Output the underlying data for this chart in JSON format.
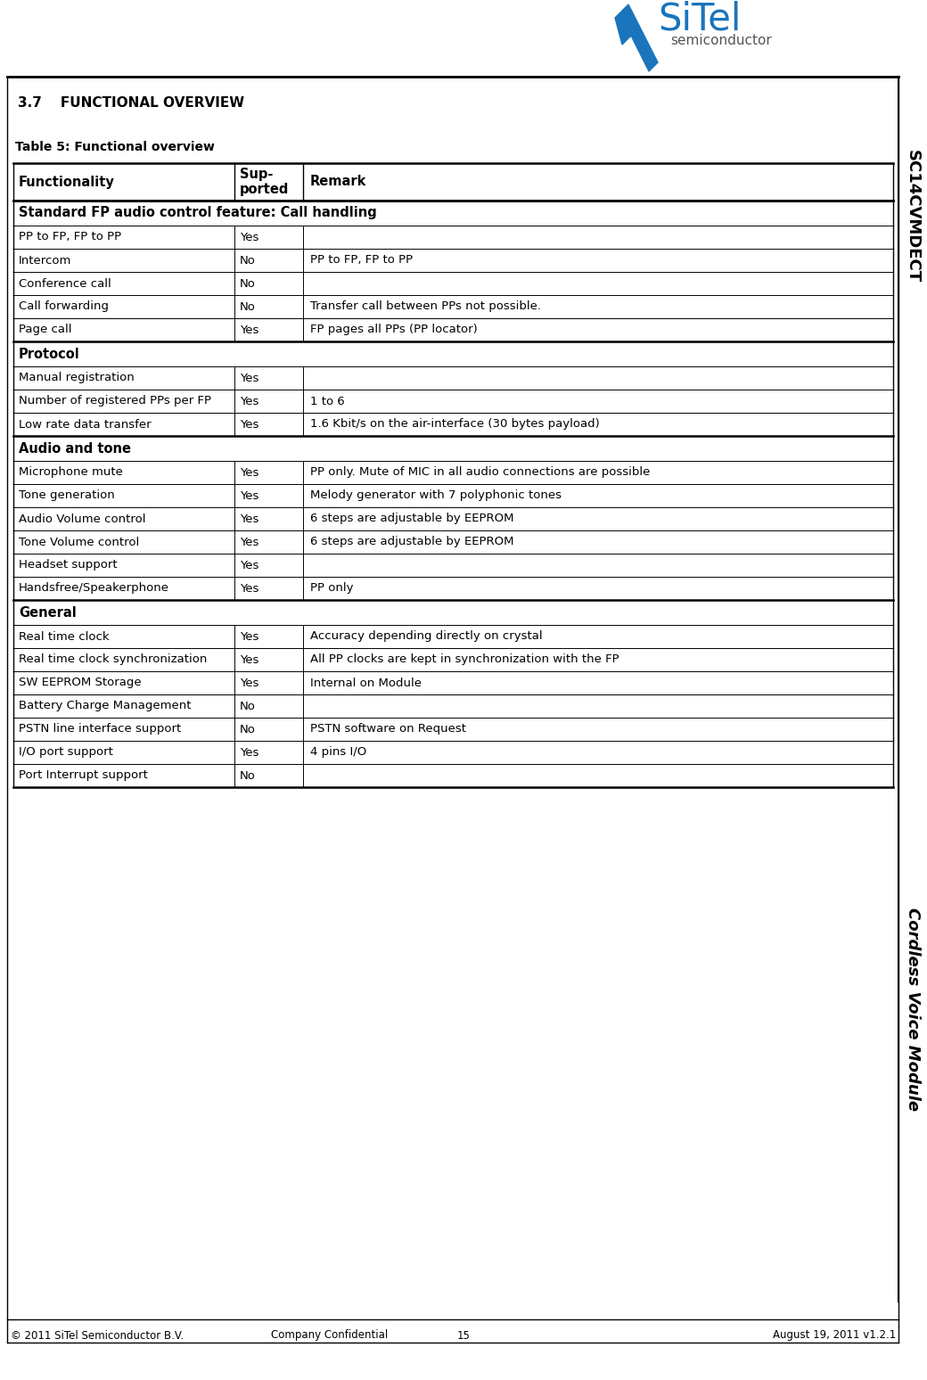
{
  "title_section": "3.7    FUNCTIONAL OVERVIEW",
  "table_title": "Table 5: Functional overview",
  "rows": [
    {
      "type": "header",
      "func": "Functionality",
      "sup": "Sup-\nported",
      "remark": "Remark"
    },
    {
      "type": "section",
      "text": "Standard FP audio control feature: Call handling"
    },
    {
      "type": "data",
      "func": "PP to FP, FP to PP",
      "sup": "Yes",
      "remark": ""
    },
    {
      "type": "data",
      "func": "Intercom",
      "sup": "No",
      "remark": "PP to FP, FP to PP"
    },
    {
      "type": "data",
      "func": "Conference call",
      "sup": "No",
      "remark": ""
    },
    {
      "type": "data",
      "func": "Call forwarding",
      "sup": "No",
      "remark": "Transfer call between PPs not possible."
    },
    {
      "type": "data",
      "func": "Page call",
      "sup": "Yes",
      "remark": "FP pages all PPs (PP locator)"
    },
    {
      "type": "section",
      "text": "Protocol"
    },
    {
      "type": "data",
      "func": "Manual registration",
      "sup": "Yes",
      "remark": ""
    },
    {
      "type": "data",
      "func": "Number of registered PPs per FP",
      "sup": "Yes",
      "remark": "1 to 6"
    },
    {
      "type": "data",
      "func": "Low rate data transfer",
      "sup": "Yes",
      "remark": "1.6 Kbit/s on the air-interface (30 bytes payload)"
    },
    {
      "type": "section",
      "text": "Audio and tone"
    },
    {
      "type": "data",
      "func": "Microphone mute",
      "sup": "Yes",
      "remark": "PP only. Mute of MIC in all audio connections are possible"
    },
    {
      "type": "data",
      "func": "Tone generation",
      "sup": "Yes",
      "remark": "Melody generator with 7 polyphonic tones"
    },
    {
      "type": "data",
      "func": "Audio Volume control",
      "sup": "Yes",
      "remark": "6 steps are adjustable by EEPROM"
    },
    {
      "type": "data",
      "func": "Tone Volume control",
      "sup": "Yes",
      "remark": "6 steps are adjustable by EEPROM"
    },
    {
      "type": "data",
      "func": "Headset support",
      "sup": "Yes",
      "remark": ""
    },
    {
      "type": "data",
      "func": "Handsfree/Speakerphone",
      "sup": "Yes",
      "remark": "PP only"
    },
    {
      "type": "section",
      "text": "General"
    },
    {
      "type": "data",
      "func": "Real time clock",
      "sup": "Yes",
      "remark": "Accuracy depending directly on crystal"
    },
    {
      "type": "data",
      "func": "Real time clock synchronization",
      "sup": "Yes",
      "remark": "All PP clocks are kept in synchronization with the FP"
    },
    {
      "type": "data",
      "func": "SW EEPROM Storage",
      "sup": "Yes",
      "remark": "Internal on Module"
    },
    {
      "type": "data",
      "func": "Battery Charge Management",
      "sup": "No",
      "remark": ""
    },
    {
      "type": "data",
      "func": "PSTN line interface support",
      "sup": "No",
      "remark": "PSTN software on Request"
    },
    {
      "type": "data",
      "func": "I/O port support",
      "sup": "Yes",
      "remark": "4 pins I/O"
    },
    {
      "type": "data",
      "func": "Port Interrupt support",
      "sup": "No",
      "remark": ""
    }
  ],
  "footer_left": "© 2011 SiTel Semiconductor B.V.",
  "footer_center_label": "Company Confidential",
  "footer_page": "15",
  "footer_right": "August 19, 2011 v1.2.1",
  "sidebar_top": "SC14CVMDECT",
  "sidebar_bottom": "Cordless Voice Module",
  "bg_color": "#ffffff",
  "text_color": "#000000",
  "blue_color": "#1a75bc",
  "gray_color": "#555555"
}
